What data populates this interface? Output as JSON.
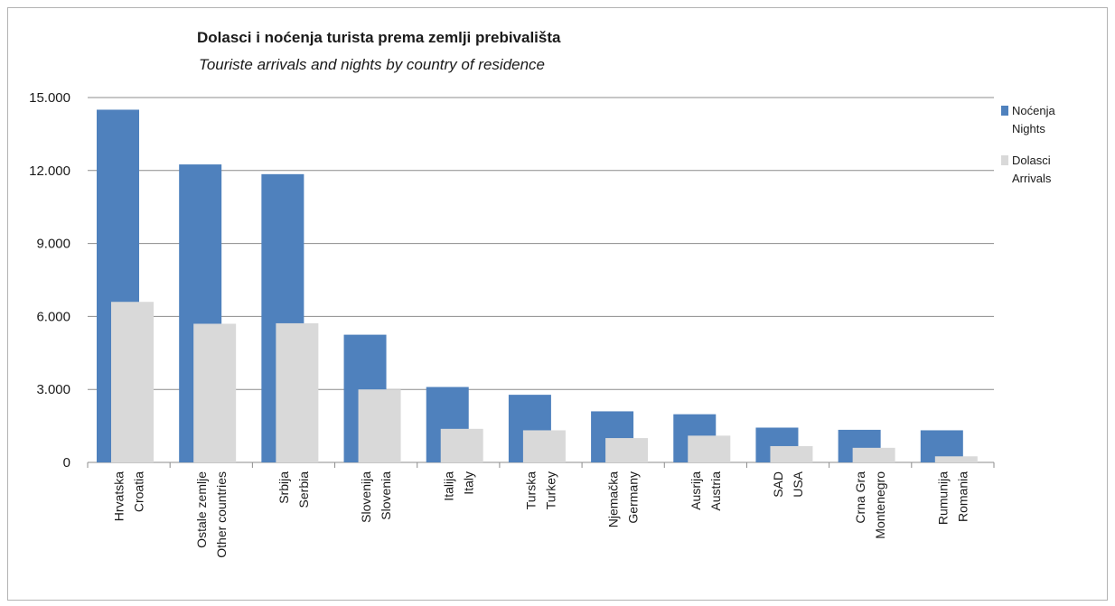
{
  "chart_data": {
    "type": "bar",
    "title": "Dolasci i noćenja turista prema zemlji prebivališta",
    "subtitle": "Touriste arrivals and nights by country of residence",
    "categories": [
      [
        "Hrvatska",
        "Croatia"
      ],
      [
        "Ostale zemlje",
        "Other countries"
      ],
      [
        "Srbija",
        "Serbia"
      ],
      [
        "Slovenija",
        "Slovenia"
      ],
      [
        "Italija",
        "Italy"
      ],
      [
        "Turska",
        "Turkey"
      ],
      [
        "Njemačka",
        "Germany"
      ],
      [
        "Ausrija",
        "Austria"
      ],
      [
        "SAD",
        "USA"
      ],
      [
        "Crna  Gra",
        "Montenegro"
      ],
      [
        "Rumunija",
        "Romania"
      ]
    ],
    "series": [
      {
        "name": "Noćenja Nights",
        "legend": [
          "Noćenja",
          "Nights"
        ],
        "color": "#4f81bd",
        "values": [
          14500,
          12250,
          11850,
          5250,
          3100,
          2780,
          2100,
          1980,
          1430,
          1340,
          1320
        ]
      },
      {
        "name": "Dolasci Arrivals",
        "legend": [
          "Dolasci",
          "Arrivals"
        ],
        "color": "#d9d9d9",
        "values": [
          6600,
          5700,
          5720,
          3000,
          1380,
          1320,
          1000,
          1100,
          670,
          600,
          250
        ]
      }
    ],
    "ylim": [
      0,
      15000
    ],
    "yticks": [
      0,
      3000,
      6000,
      9000,
      12000,
      15000
    ],
    "ytick_labels": [
      "0",
      "3.000",
      "6.000",
      "9.000",
      "12.000",
      "15.000"
    ],
    "grid": true,
    "legend_position": "right"
  }
}
